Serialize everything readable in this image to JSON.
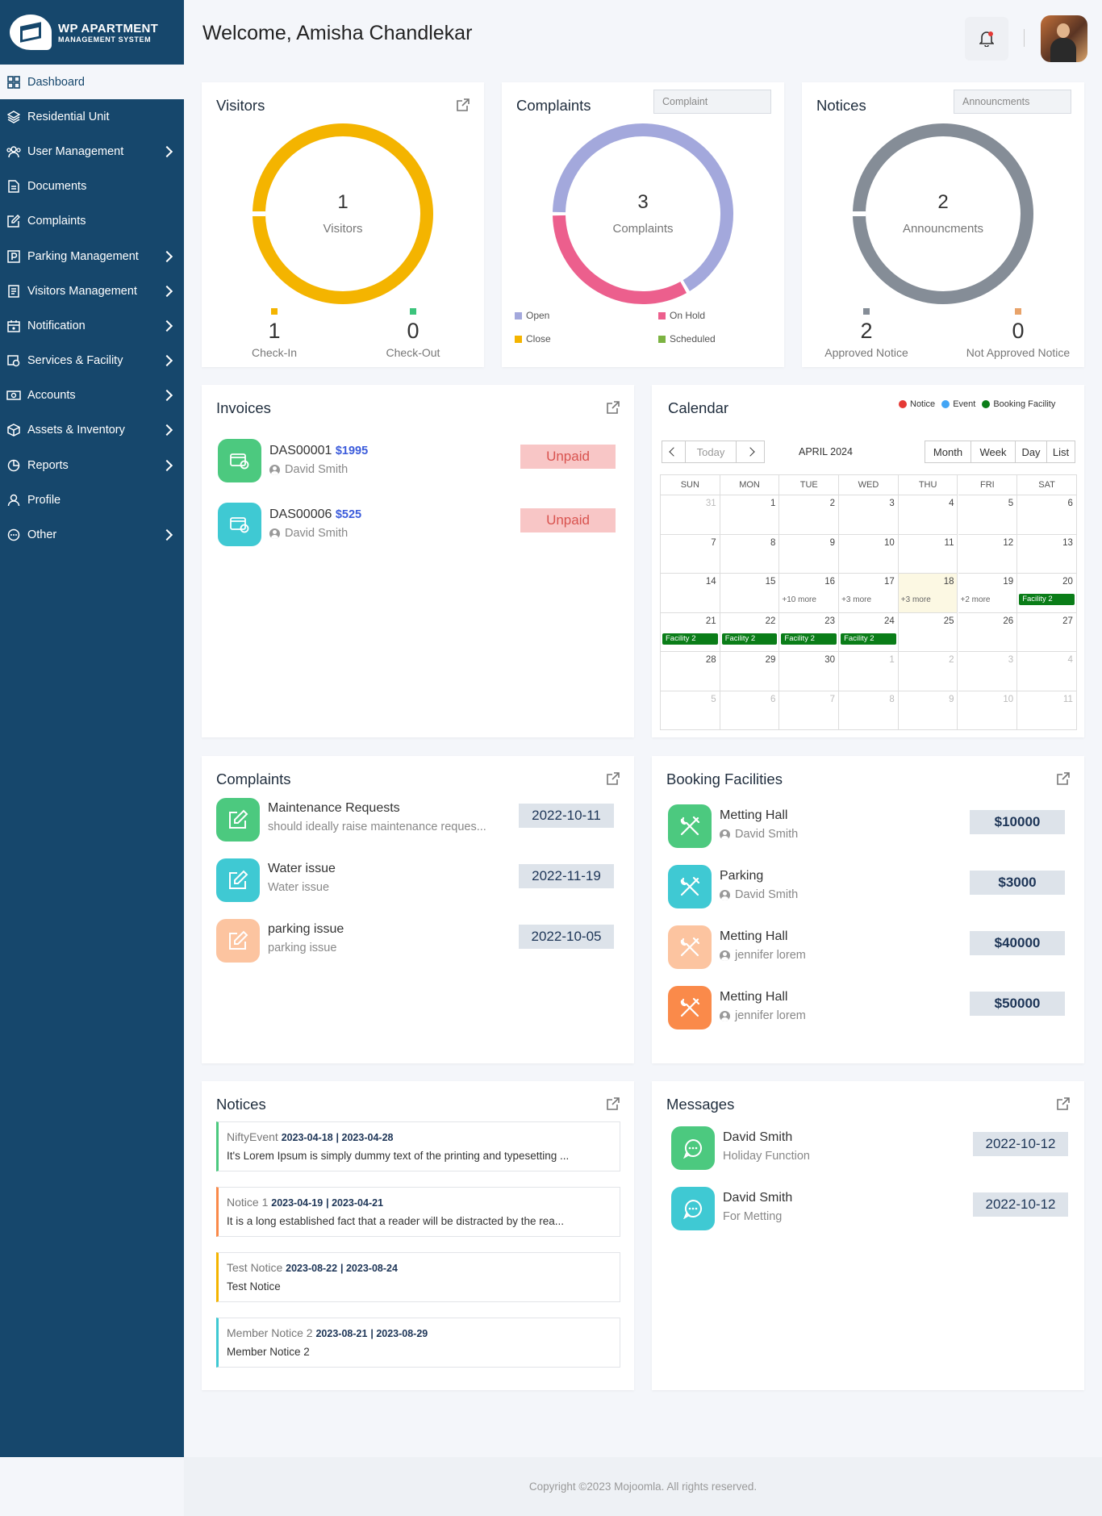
{
  "brand": {
    "line1": "WP APARTMENT",
    "line2": "MANAGEMENT SYSTEM"
  },
  "sidebar": {
    "items": [
      {
        "label": "Dashboard",
        "icon": "grid-icon",
        "chevron": false
      },
      {
        "label": "Residential Unit",
        "icon": "layers-icon",
        "chevron": false
      },
      {
        "label": "User Management",
        "icon": "users-icon",
        "chevron": true
      },
      {
        "label": "Documents",
        "icon": "document-icon",
        "chevron": false
      },
      {
        "label": "Complaints",
        "icon": "edit-icon",
        "chevron": false
      },
      {
        "label": "Parking Management",
        "icon": "parking-icon",
        "chevron": true
      },
      {
        "label": "Visitors Management",
        "icon": "list-icon",
        "chevron": true
      },
      {
        "label": "Notification",
        "icon": "calendar-icon",
        "chevron": true
      },
      {
        "label": "Services & Facility",
        "icon": "service-icon",
        "chevron": true
      },
      {
        "label": "Accounts",
        "icon": "cash-icon",
        "chevron": true
      },
      {
        "label": "Assets & Inventory",
        "icon": "box-icon",
        "chevron": true
      },
      {
        "label": "Reports",
        "icon": "pie-icon",
        "chevron": true
      },
      {
        "label": "Profile",
        "icon": "user-icon",
        "chevron": false
      },
      {
        "label": "Other",
        "icon": "more-icon",
        "chevron": true
      }
    ]
  },
  "header": {
    "welcome": "Welcome, Amisha Chandlekar"
  },
  "visitors": {
    "title": "Visitors",
    "count": "1",
    "count_label": "Visitors",
    "checkin": "1",
    "checkin_label": "Check-In",
    "checkout": "0",
    "checkout_label": "Check-Out",
    "colors": {
      "checkin": "#f4b400",
      "checkout": "#3cc47c"
    }
  },
  "complaints_card": {
    "title": "Complaints",
    "dropdown": "Complaint",
    "count": "3",
    "count_label": "Complaints",
    "legend": [
      {
        "label": "Open",
        "color": "#a3a8dc"
      },
      {
        "label": "On Hold",
        "color": "#ec5f8d"
      },
      {
        "label": "Close",
        "color": "#f4b400"
      },
      {
        "label": "Scheduled",
        "color": "#7cb342"
      }
    ],
    "segments": [
      {
        "label": "Open",
        "value": 2
      },
      {
        "label": "On Hold",
        "value": 1
      }
    ]
  },
  "notices_card": {
    "title": "Notices",
    "dropdown": "Announcments",
    "count": "2",
    "count_label": "Announcments",
    "approved": "2",
    "approved_label": "Approved Notice",
    "not_approved": "0",
    "not_approved_label": "Not Approved Notice"
  },
  "invoices": {
    "title": "Invoices",
    "items": [
      {
        "id": "DAS00001",
        "amount": "$1995",
        "name": "David Smith",
        "status": "Unpaid",
        "color": "#4cc97f"
      },
      {
        "id": "DAS00006",
        "amount": "$525",
        "name": "David Smith",
        "status": "Unpaid",
        "color": "#3fc9d3"
      }
    ]
  },
  "calendar": {
    "title": "Calendar",
    "month": "APRIL 2024",
    "today": "Today",
    "views": [
      "Month",
      "Week",
      "Day",
      "List"
    ],
    "legend": [
      {
        "label": "Notice",
        "color": "#e53935"
      },
      {
        "label": "Event",
        "color": "#42a5f5"
      },
      {
        "label": "Booking Facility",
        "color": "#0a7d18"
      }
    ],
    "days": [
      "SUN",
      "MON",
      "TUE",
      "WED",
      "THU",
      "FRI",
      "SAT"
    ],
    "weeks": [
      [
        "31",
        "1",
        "2",
        "3",
        "4",
        "5",
        "6"
      ],
      [
        "7",
        "8",
        "9",
        "10",
        "11",
        "12",
        "13"
      ],
      [
        "14",
        "15",
        "16",
        "17",
        "18",
        "19",
        "20"
      ],
      [
        "21",
        "22",
        "23",
        "24",
        "25",
        "26",
        "27"
      ],
      [
        "28",
        "29",
        "30",
        "1",
        "2",
        "3",
        "4"
      ],
      [
        "5",
        "6",
        "7",
        "8",
        "9",
        "10",
        "11"
      ]
    ],
    "more": [
      {
        "week": 2,
        "day": 2,
        "text": "+10 more"
      },
      {
        "week": 2,
        "day": 3,
        "text": "+3 more"
      },
      {
        "week": 2,
        "day": 4,
        "text": "+3 more"
      },
      {
        "week": 2,
        "day": 5,
        "text": "+2 more"
      }
    ],
    "events": [
      {
        "week": 2,
        "day": 6,
        "text": "Facility 2"
      },
      {
        "week": 3,
        "day": 0,
        "text": "Facility 2"
      },
      {
        "week": 3,
        "day": 1,
        "text": "Facility 2"
      },
      {
        "week": 3,
        "day": 2,
        "text": "Facility 2"
      },
      {
        "week": 3,
        "day": 3,
        "text": "Facility 2"
      }
    ]
  },
  "complaints_list": {
    "title": "Complaints",
    "items": [
      {
        "title": "Maintenance Requests",
        "desc": "should ideally raise maintenance reques...",
        "date": "2022-10-11",
        "color": "#4cc97f"
      },
      {
        "title": "Water issue",
        "desc": "Water issue",
        "date": "2022-11-19",
        "color": "#3fc9d3"
      },
      {
        "title": "parking issue",
        "desc": "parking issue",
        "date": "2022-10-05",
        "color": "#fcc4a0"
      }
    ]
  },
  "booking": {
    "title": "Booking Facilities",
    "items": [
      {
        "title": "Metting Hall",
        "name": "David Smith",
        "amount": "$10000",
        "color": "#4cc97f"
      },
      {
        "title": "Parking",
        "name": "David Smith",
        "amount": "$3000",
        "color": "#3fc9d3"
      },
      {
        "title": "Metting Hall",
        "name": "jennifer lorem",
        "amount": "$40000",
        "color": "#fcc4a0"
      },
      {
        "title": "Metting Hall",
        "name": "jennifer lorem",
        "amount": "$50000",
        "color": "#fa8a4a"
      }
    ]
  },
  "notices": {
    "title": "Notices",
    "items": [
      {
        "name": "NiftyEvent",
        "start": "2023-04-18",
        "end": "2023-04-28",
        "desc": "It's Lorem Ipsum is simply dummy text of the printing and typesetting ...",
        "color": "#4cc97f"
      },
      {
        "name": "Notice 1",
        "start": "2023-04-19",
        "end": "2023-04-21",
        "desc": "It is a long established fact that a reader will be distracted by the rea...",
        "color": "#fa8a4a"
      },
      {
        "name": "Test Notice",
        "start": "2023-08-22",
        "end": "2023-08-24",
        "desc": "Test Notice",
        "color": "#f4b400"
      },
      {
        "name": "Member Notice 2",
        "start": "2023-08-21",
        "end": "2023-08-29",
        "desc": "Member Notice 2",
        "color": "#3fc9d3"
      }
    ]
  },
  "messages": {
    "title": "Messages",
    "items": [
      {
        "name": "David Smith",
        "text": "Holiday Function",
        "date": "2022-10-12",
        "color": "#4cc97f"
      },
      {
        "name": "David Smith",
        "text": "For Metting",
        "date": "2022-10-12",
        "color": "#3fc9d3"
      }
    ]
  },
  "footer": {
    "text": "Copyright ©2023 Mojoomla. All rights reserved."
  }
}
